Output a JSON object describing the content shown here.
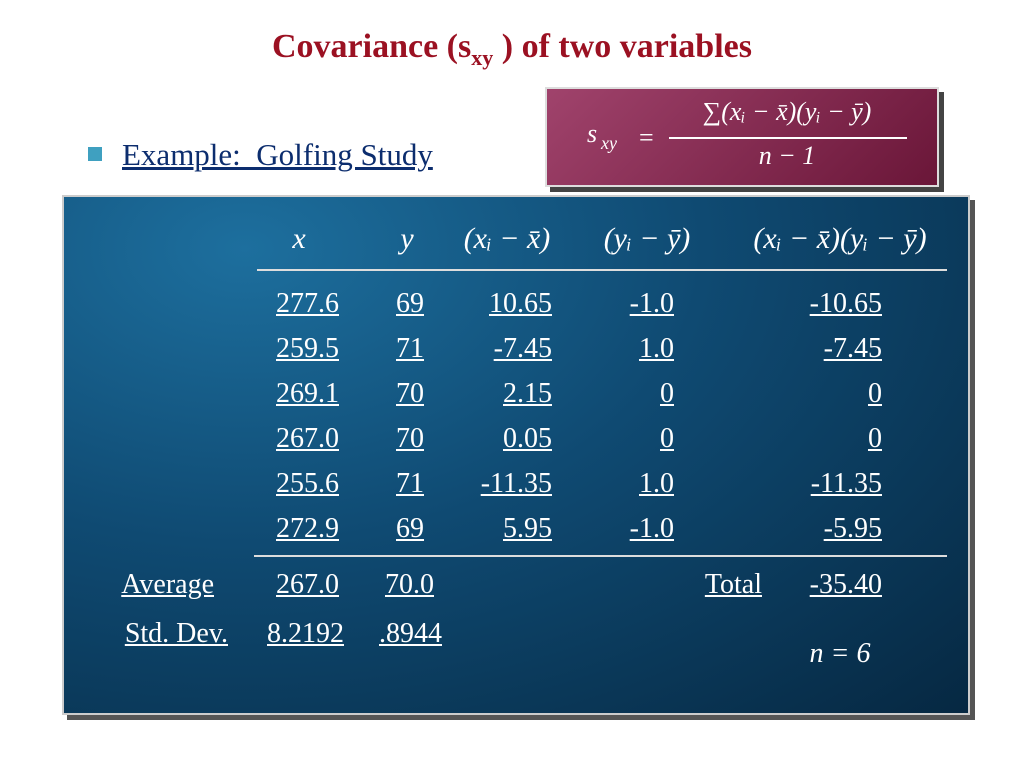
{
  "title": {
    "before": "Covariance (s",
    "sub": "xy",
    "after": " ) of two variables"
  },
  "bullet": "Example:  Golfing Study",
  "formula": {
    "lhs": "s",
    "lhs_sub": "xy",
    "equals": "=",
    "numerator": "∑(xᵢ − x̄)(yᵢ − ȳ)",
    "denominator": "n − 1"
  },
  "table": {
    "headers": [
      "x",
      "y",
      "(xᵢ − x̄)",
      "(yᵢ − ȳ)",
      "(xᵢ − x̄)(yᵢ − ȳ)"
    ],
    "rows": [
      [
        "277.6",
        "69",
        "10.65",
        "-1.0",
        "-10.65"
      ],
      [
        "259.5",
        "71",
        "-7.45",
        "1.0",
        "-7.45"
      ],
      [
        "269.1",
        "70",
        "2.15",
        "0",
        "0"
      ],
      [
        "267.0",
        "70",
        "0.05",
        "0",
        "0"
      ],
      [
        "255.6",
        "71",
        "-11.35",
        "1.0",
        "-11.35"
      ],
      [
        "272.9",
        "69",
        "5.95",
        "-1.0",
        "-5.95"
      ]
    ],
    "average": {
      "label": "Average",
      "x": "267.0",
      "y": "70.0"
    },
    "total": {
      "label": "Total",
      "value": "-35.40"
    },
    "std_dev": {
      "label": "Std. Dev.",
      "x": "8.2192",
      "y": ".8944"
    },
    "n": "n = 6"
  }
}
